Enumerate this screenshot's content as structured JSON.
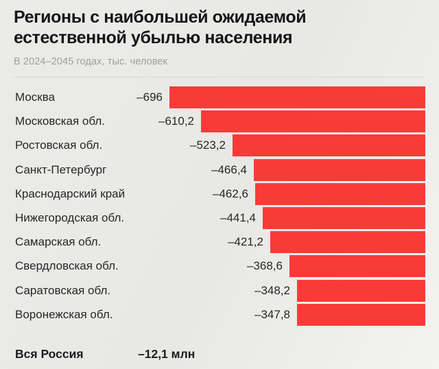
{
  "header": {
    "title_line1": "Регионы с наибольшей ожидаемой",
    "title_line2": "естественной убылью населения",
    "subtitle": "В 2024–2045 годах, тыс. человек"
  },
  "chart_data": {
    "type": "bar",
    "orientation": "horizontal",
    "anchor": "right",
    "title": "Регионы с наибольшей ожидаемой естественной убылью населения",
    "subtitle": "В 2024–2045 годах, тыс. человек",
    "unit": "тыс. человек",
    "period": "2024–2045",
    "categories": [
      "Москва",
      "Московская обл.",
      "Ростовская обл.",
      "Санкт-Петербург",
      "Краснодарский край",
      "Нижегородская обл.",
      "Самарская обл.",
      "Свердловская обл.",
      "Саратовская обл.",
      "Воронежская обл."
    ],
    "values": [
      -696,
      -610.2,
      -523.2,
      -466.4,
      -462.6,
      -441.4,
      -421.2,
      -368.6,
      -348.2,
      -347.8
    ],
    "value_labels": [
      "–696",
      "–610,2",
      "–523,2",
      "–466,4",
      "–462,6",
      "–441,4",
      "–421,2",
      "–368,6",
      "–348,2",
      "–347,8"
    ],
    "bar_color": "#f93b37",
    "legend": null,
    "grid": false
  },
  "total": {
    "label": "Вся Россия",
    "value": "–12,1 млн"
  },
  "colors": {
    "background": "#e9e9e7",
    "bar": "#f93b37",
    "title": "#161616",
    "subtitle": "#9e9e9c",
    "text": "#262626",
    "divider": "#d8d8d6"
  }
}
